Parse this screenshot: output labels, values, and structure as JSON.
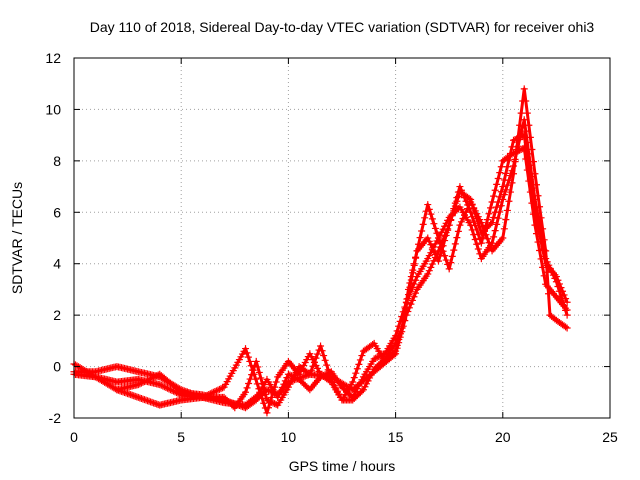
{
  "chart_data": {
    "type": "scatter",
    "title": "Day 110 of 2018, Sidereal Day-to-day VTEC variation (SDTVAR) for receiver ohi3",
    "xlabel": "GPS time / hours",
    "ylabel": "SDTVAR / TECUs",
    "xlim": [
      0,
      25
    ],
    "ylim": [
      -2,
      12
    ],
    "xticks": [
      0,
      5,
      10,
      15,
      20,
      25
    ],
    "yticks": [
      -2,
      0,
      2,
      4,
      6,
      8,
      10,
      12
    ],
    "grid": true,
    "marker": "+",
    "color": "#ff0000",
    "series": [
      {
        "name": "track-1",
        "points": [
          [
            0,
            0.1
          ],
          [
            1,
            -0.4
          ],
          [
            2,
            -0.6
          ],
          [
            3,
            -0.5
          ],
          [
            4,
            -0.7
          ],
          [
            5,
            -1.1
          ],
          [
            6,
            -1.2
          ],
          [
            7,
            -1.4
          ],
          [
            8,
            -1.5
          ],
          [
            8.6,
            -1.1
          ],
          [
            9,
            -0.5
          ],
          [
            9.5,
            -1.2
          ],
          [
            10,
            -0.3
          ],
          [
            10.5,
            -0.5
          ],
          [
            11,
            -0.9
          ],
          [
            11.5,
            -0.4
          ],
          [
            12,
            -0.2
          ],
          [
            12.5,
            -0.8
          ],
          [
            13,
            -1.2
          ],
          [
            13.5,
            -0.4
          ],
          [
            14,
            0.3
          ],
          [
            14.5,
            0.5
          ],
          [
            15,
            1.2
          ],
          [
            15.5,
            2.5
          ],
          [
            16,
            3.5
          ],
          [
            16.5,
            4.2
          ],
          [
            17,
            5
          ],
          [
            17.5,
            5.8
          ],
          [
            18,
            6.2
          ],
          [
            18.5,
            5.5
          ],
          [
            19,
            4.2
          ],
          [
            19.5,
            4.8
          ],
          [
            20,
            6.5
          ],
          [
            20.5,
            7.8
          ],
          [
            21,
            9.6
          ],
          [
            21.5,
            6.5
          ],
          [
            22,
            4.2
          ],
          [
            22.5,
            3.3
          ],
          [
            23,
            2
          ]
        ]
      },
      {
        "name": "track-2",
        "points": [
          [
            0,
            -0.2
          ],
          [
            1,
            -0.2
          ],
          [
            2,
            0
          ],
          [
            3,
            -0.2
          ],
          [
            4,
            -0.4
          ],
          [
            5,
            -0.9
          ],
          [
            6,
            -1.2
          ],
          [
            7,
            -0.8
          ],
          [
            8,
            0.7
          ],
          [
            8.4,
            -0.3
          ],
          [
            9,
            -1.8
          ],
          [
            9.5,
            -0.4
          ],
          [
            10,
            0.2
          ],
          [
            10.5,
            -0.3
          ],
          [
            11,
            0.5
          ],
          [
            11.5,
            -0.3
          ],
          [
            12,
            -0.6
          ],
          [
            12.5,
            -1.3
          ],
          [
            13,
            -0.6
          ],
          [
            13.5,
            0.6
          ],
          [
            14,
            0.9
          ],
          [
            14.5,
            0.2
          ],
          [
            15,
            0.6
          ],
          [
            15.3,
            1.5
          ],
          [
            15.6,
            3
          ],
          [
            16,
            4.5
          ],
          [
            16.5,
            5
          ],
          [
            17,
            4.1
          ],
          [
            17.5,
            5.5
          ],
          [
            18,
            6.8
          ],
          [
            18.5,
            6.5
          ],
          [
            19,
            5.2
          ],
          [
            19.5,
            5.6
          ],
          [
            20,
            7
          ],
          [
            20.5,
            8.8
          ],
          [
            21,
            9
          ],
          [
            21.5,
            6
          ],
          [
            22,
            4
          ],
          [
            22.5,
            3.5
          ],
          [
            23,
            2.5
          ]
        ]
      },
      {
        "name": "track-3",
        "points": [
          [
            0,
            -0.3
          ],
          [
            1,
            -0.4
          ],
          [
            2,
            -0.9
          ],
          [
            3,
            -1.2
          ],
          [
            4,
            -1.5
          ],
          [
            5,
            -1.3
          ],
          [
            6,
            -1.2
          ],
          [
            7,
            -1.2
          ],
          [
            7.5,
            -1.6
          ],
          [
            8,
            -1
          ],
          [
            8.5,
            0.2
          ],
          [
            9,
            -1.3
          ],
          [
            9.5,
            -1.5
          ],
          [
            10,
            -0.8
          ],
          [
            10.5,
            0
          ],
          [
            11,
            -0.3
          ],
          [
            11.5,
            0.8
          ],
          [
            12,
            -0.5
          ],
          [
            12.5,
            -1.3
          ],
          [
            13,
            -1.3
          ],
          [
            13.5,
            -0.9
          ],
          [
            14,
            -0.1
          ],
          [
            14.5,
            0.3
          ],
          [
            15,
            0.9
          ],
          [
            15.3,
            1.5
          ],
          [
            15.6,
            2.8
          ],
          [
            16,
            4.5
          ],
          [
            16.5,
            6.3
          ],
          [
            17,
            5
          ],
          [
            17.5,
            3.8
          ],
          [
            18,
            5.5
          ],
          [
            18.5,
            6.4
          ],
          [
            19,
            5.6
          ],
          [
            19.5,
            4.5
          ],
          [
            20,
            5
          ],
          [
            20.5,
            7.5
          ],
          [
            21,
            10.8
          ],
          [
            21.5,
            7.5
          ],
          [
            22,
            4.5
          ],
          [
            22.2,
            2
          ],
          [
            22.5,
            1.8
          ],
          [
            23,
            1.5
          ]
        ]
      },
      {
        "name": "track-4",
        "points": [
          [
            2,
            -0.9
          ],
          [
            3,
            -0.7
          ],
          [
            4,
            -0.3
          ],
          [
            5,
            -1
          ],
          [
            6,
            -1.1
          ],
          [
            7,
            -1.3
          ],
          [
            8,
            -1.6
          ],
          [
            8.5,
            -1.3
          ],
          [
            9,
            -0.9
          ],
          [
            9.5,
            -1.1
          ],
          [
            10,
            -0.6
          ],
          [
            11,
            -0.3
          ],
          [
            12,
            -0.4
          ],
          [
            13,
            -0.9
          ],
          [
            14,
            -0.2
          ],
          [
            15,
            0.5
          ],
          [
            15.5,
            2
          ],
          [
            16,
            3
          ],
          [
            16.5,
            3.6
          ],
          [
            17,
            4.5
          ],
          [
            17.5,
            5.5
          ],
          [
            18,
            7
          ],
          [
            18.5,
            6
          ],
          [
            19,
            4.8
          ],
          [
            20,
            8
          ],
          [
            20.5,
            8.3
          ],
          [
            21,
            8.5
          ],
          [
            21.5,
            5.5
          ],
          [
            22,
            3.2
          ],
          [
            23,
            2.2
          ]
        ]
      }
    ]
  }
}
